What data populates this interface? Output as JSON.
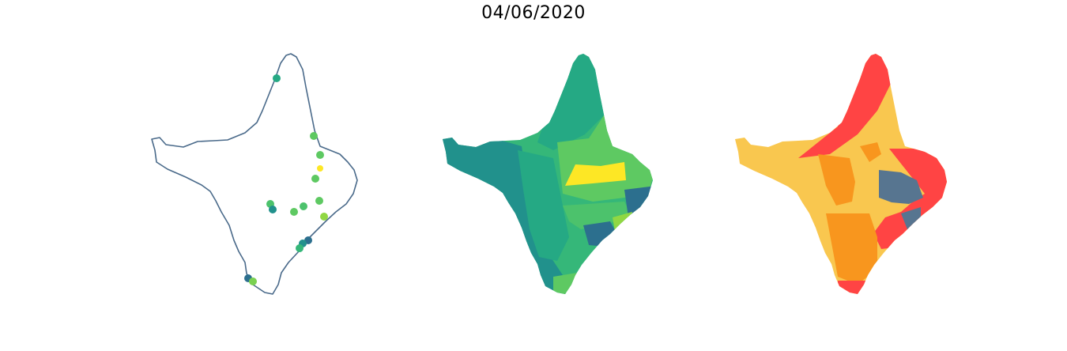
{
  "title": "04/06/2020",
  "colors": {
    "outline": "#4a6a8a",
    "viridis": [
      "#2c6f8e",
      "#21918c",
      "#25a984",
      "#35b779",
      "#5ec962",
      "#90d743",
      "#fde725"
    ],
    "risk": {
      "red": "#ff4444",
      "orange": "#f8961e",
      "yellow": "#f9c74f",
      "slate": "#577590"
    }
  },
  "map_points": [
    {
      "color": "#25a984"
    },
    {
      "color": "#5ec962"
    },
    {
      "color": "#5ec962"
    },
    {
      "color": "#fde725"
    },
    {
      "color": "#5ec962"
    },
    {
      "color": "#4cc26c"
    },
    {
      "color": "#21918c"
    },
    {
      "color": "#5ec962"
    },
    {
      "color": "#4cc26c"
    },
    {
      "color": "#5ec962"
    },
    {
      "color": "#90d743"
    },
    {
      "color": "#2c6f8e"
    },
    {
      "color": "#21918c"
    },
    {
      "color": "#35b779"
    },
    {
      "color": "#2c6f8e"
    },
    {
      "color": "#7ad151"
    }
  ]
}
